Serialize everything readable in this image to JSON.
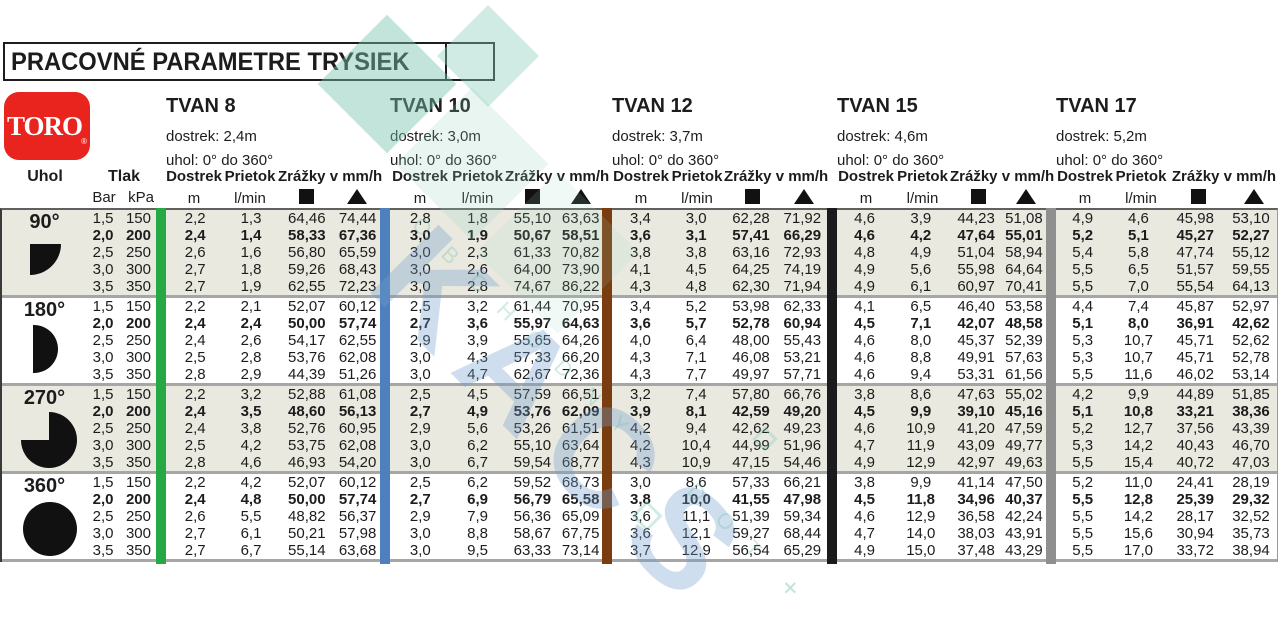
{
  "title": "PRACOVNÉ PARAMETRE TRYSIEK",
  "logo": {
    "text": "TORO",
    "registered": "®"
  },
  "headers": {
    "uhol": "Uhol",
    "tlak": "Tlak",
    "bar": "Bar",
    "kpa": "kPa",
    "dostrek": "Dostrek",
    "prietok": "Prietok",
    "zrazky": "Zrážky v mm/h",
    "m": "m",
    "lmin": "l/min"
  },
  "symbols": {
    "square": "square-icon",
    "triangle": "triangle-icon"
  },
  "sections": [
    {
      "name": "TVAN 8",
      "dostrek": "dostrek: 2,4m",
      "uhol": "uhol: 0° do 360°",
      "bar_color": "#26a944"
    },
    {
      "name": "TVAN 10",
      "dostrek": "dostrek: 3,0m",
      "uhol": "uhol:  0° do 360°",
      "bar_color": "#4d80bd"
    },
    {
      "name": "TVAN 12",
      "dostrek": "dostrek: 3,7m",
      "uhol": "uhol:  0° do 360°",
      "bar_color": "#7a3d10"
    },
    {
      "name": "TVAN 15",
      "dostrek": "dostrek: 4,6m",
      "uhol": "uhol:  0° do 360°",
      "bar_color": "#1b1b1e"
    },
    {
      "name": "TVAN 17",
      "dostrek": "dostrek: 5,2m",
      "uhol": "uhol:  0° do 360°",
      "bar_color": "#8f8f8f"
    }
  ],
  "groups": [
    {
      "angle": "90°",
      "icon": "quarter-circle-icon",
      "shaded": true,
      "rows": [
        {
          "bar": "1,5",
          "kpa": "150",
          "bold": false,
          "values": [
            [
              "2,2",
              "1,3",
              "64,46",
              "74,44"
            ],
            [
              "2,8",
              "1,8",
              "55,10",
              "63,63"
            ],
            [
              "3,4",
              "3,0",
              "62,28",
              "71,92"
            ],
            [
              "4,6",
              "3,9",
              "44,23",
              "51,08"
            ],
            [
              "4,9",
              "4,6",
              "45,98",
              "53,10"
            ]
          ]
        },
        {
          "bar": "2,0",
          "kpa": "200",
          "bold": true,
          "values": [
            [
              "2,4",
              "1,4",
              "58,33",
              "67,36"
            ],
            [
              "3,0",
              "1,9",
              "50,67",
              "58,51"
            ],
            [
              "3,6",
              "3,1",
              "57,41",
              "66,29"
            ],
            [
              "4,6",
              "4,2",
              "47,64",
              "55,01"
            ],
            [
              "5,2",
              "5,1",
              "45,27",
              "52,27"
            ]
          ]
        },
        {
          "bar": "2,5",
          "kpa": "250",
          "bold": false,
          "values": [
            [
              "2,6",
              "1,6",
              "56,80",
              "65,59"
            ],
            [
              "3,0",
              "2,3",
              "61,33",
              "70,82"
            ],
            [
              "3,8",
              "3,8",
              "63,16",
              "72,93"
            ],
            [
              "4,8",
              "4,9",
              "51,04",
              "58,94"
            ],
            [
              "5,4",
              "5,8",
              "47,74",
              "55,12"
            ]
          ]
        },
        {
          "bar": "3,0",
          "kpa": "300",
          "bold": false,
          "values": [
            [
              "2,7",
              "1,8",
              "59,26",
              "68,43"
            ],
            [
              "3,0",
              "2,6",
              "64,00",
              "73,90"
            ],
            [
              "4,1",
              "4,5",
              "64,25",
              "74,19"
            ],
            [
              "4,9",
              "5,6",
              "55,98",
              "64,64"
            ],
            [
              "5,5",
              "6,5",
              "51,57",
              "59,55"
            ]
          ]
        },
        {
          "bar": "3,5",
          "kpa": "350",
          "bold": false,
          "values": [
            [
              "2,7",
              "1,9",
              "62,55",
              "72,23"
            ],
            [
              "3,0",
              "2,8",
              "74,67",
              "86,22"
            ],
            [
              "4,3",
              "4,8",
              "62,30",
              "71,94"
            ],
            [
              "4,9",
              "6,1",
              "60,97",
              "70,41"
            ],
            [
              "5,5",
              "7,0",
              "55,54",
              "64,13"
            ]
          ]
        }
      ]
    },
    {
      "angle": "180°",
      "icon": "half-circle-icon",
      "shaded": false,
      "rows": [
        {
          "bar": "1,5",
          "kpa": "150",
          "bold": false,
          "values": [
            [
              "2,2",
              "2,1",
              "52,07",
              "60,12"
            ],
            [
              "2,5",
              "3,2",
              "61,44",
              "70,95"
            ],
            [
              "3,4",
              "5,2",
              "53,98",
              "62,33"
            ],
            [
              "4,1",
              "6,5",
              "46,40",
              "53,58"
            ],
            [
              "4,4",
              "7,4",
              "45,87",
              "52,97"
            ]
          ]
        },
        {
          "bar": "2,0",
          "kpa": "200",
          "bold": true,
          "values": [
            [
              "2,4",
              "2,4",
              "50,00",
              "57,74"
            ],
            [
              "2,7",
              "3,6",
              "55,97",
              "64,63"
            ],
            [
              "3,6",
              "5,7",
              "52,78",
              "60,94"
            ],
            [
              "4,5",
              "7,1",
              "42,07",
              "48,58"
            ],
            [
              "5,1",
              "8,0",
              "36,91",
              "42,62"
            ]
          ]
        },
        {
          "bar": "2,5",
          "kpa": "250",
          "bold": false,
          "values": [
            [
              "2,4",
              "2,6",
              "54,17",
              "62,55"
            ],
            [
              "2,9",
              "3,9",
              "55,65",
              "64,26"
            ],
            [
              "4,0",
              "6,4",
              "48,00",
              "55,43"
            ],
            [
              "4,6",
              "8,0",
              "45,37",
              "52,39"
            ],
            [
              "5,3",
              "10,7",
              "45,71",
              "52,62"
            ]
          ]
        },
        {
          "bar": "3,0",
          "kpa": "300",
          "bold": false,
          "values": [
            [
              "2,5",
              "2,8",
              "53,76",
              "62,08"
            ],
            [
              "3,0",
              "4,3",
              "57,33",
              "66,20"
            ],
            [
              "4,3",
              "7,1",
              "46,08",
              "53,21"
            ],
            [
              "4,6",
              "8,8",
              "49,91",
              "57,63"
            ],
            [
              "5,3",
              "10,7",
              "45,71",
              "52,78"
            ]
          ]
        },
        {
          "bar": "3,5",
          "kpa": "350",
          "bold": false,
          "values": [
            [
              "2,8",
              "2,9",
              "44,39",
              "51,26"
            ],
            [
              "3,0",
              "4,7",
              "62,67",
              "72,36"
            ],
            [
              "4,3",
              "7,7",
              "49,97",
              "57,71"
            ],
            [
              "4,6",
              "9,4",
              "53,31",
              "61,56"
            ],
            [
              "5,5",
              "11,6",
              "46,02",
              "53,14"
            ]
          ]
        }
      ]
    },
    {
      "angle": "270°",
      "icon": "three-quarter-circle-icon",
      "shaded": true,
      "rows": [
        {
          "bar": "1,5",
          "kpa": "150",
          "bold": false,
          "values": [
            [
              "2,2",
              "3,2",
              "52,88",
              "61,08"
            ],
            [
              "2,5",
              "4,5",
              "57,59",
              "66,51"
            ],
            [
              "3,2",
              "7,4",
              "57,80",
              "66,76"
            ],
            [
              "3,8",
              "8,6",
              "47,63",
              "55,02"
            ],
            [
              "4,2",
              "9,9",
              "44,89",
              "51,85"
            ]
          ]
        },
        {
          "bar": "2,0",
          "kpa": "200",
          "bold": true,
          "values": [
            [
              "2,4",
              "3,5",
              "48,60",
              "56,13"
            ],
            [
              "2,7",
              "4,9",
              "53,76",
              "62,09"
            ],
            [
              "3,9",
              "8,1",
              "42,59",
              "49,20"
            ],
            [
              "4,5",
              "9,9",
              "39,10",
              "45,16"
            ],
            [
              "5,1",
              "10,8",
              "33,21",
              "38,36"
            ]
          ]
        },
        {
          "bar": "2,5",
          "kpa": "250",
          "bold": false,
          "values": [
            [
              "2,4",
              "3,8",
              "52,76",
              "60,95"
            ],
            [
              "2,9",
              "5,6",
              "53,26",
              "61,51"
            ],
            [
              "4,2",
              "9,4",
              "42,62",
              "49,23"
            ],
            [
              "4,6",
              "10,9",
              "41,20",
              "47,59"
            ],
            [
              "5,2",
              "12,7",
              "37,56",
              "43,39"
            ]
          ]
        },
        {
          "bar": "3,0",
          "kpa": "300",
          "bold": false,
          "values": [
            [
              "2,5",
              "4,2",
              "53,75",
              "62,08"
            ],
            [
              "3,0",
              "6,2",
              "55,10",
              "63,64"
            ],
            [
              "4,2",
              "10,4",
              "44,99",
              "51,96"
            ],
            [
              "4,7",
              "11,9",
              "43,09",
              "49,77"
            ],
            [
              "5,3",
              "14,2",
              "40,43",
              "46,70"
            ]
          ]
        },
        {
          "bar": "3,5",
          "kpa": "350",
          "bold": false,
          "values": [
            [
              "2,8",
              "4,6",
              "46,93",
              "54,20"
            ],
            [
              "3,0",
              "6,7",
              "59,54",
              "68,77"
            ],
            [
              "4,3",
              "10,9",
              "47,15",
              "54,46"
            ],
            [
              "4,9",
              "12,9",
              "42,97",
              "49,63"
            ],
            [
              "5,5",
              "15,4",
              "40,72",
              "47,03"
            ]
          ]
        }
      ]
    },
    {
      "angle": "360°",
      "icon": "full-circle-icon",
      "shaded": false,
      "rows": [
        {
          "bar": "1,5",
          "kpa": "150",
          "bold": false,
          "values": [
            [
              "2,2",
              "4,2",
              "52,07",
              "60,12"
            ],
            [
              "2,5",
              "6,2",
              "59,52",
              "68,73"
            ],
            [
              "3,0",
              "8,6",
              "57,33",
              "66,21"
            ],
            [
              "3,8",
              "9,9",
              "41,14",
              "47,50"
            ],
            [
              "5,2",
              "11,0",
              "24,41",
              "28,19"
            ]
          ]
        },
        {
          "bar": "2,0",
          "kpa": "200",
          "bold": true,
          "values": [
            [
              "2,4",
              "4,8",
              "50,00",
              "57,74"
            ],
            [
              "2,7",
              "6,9",
              "56,79",
              "65,58"
            ],
            [
              "3,8",
              "10,0",
              "41,55",
              "47,98"
            ],
            [
              "4,5",
              "11,8",
              "34,96",
              "40,37"
            ],
            [
              "5,5",
              "12,8",
              "25,39",
              "29,32"
            ]
          ]
        },
        {
          "bar": "2,5",
          "kpa": "250",
          "bold": false,
          "values": [
            [
              "2,6",
              "5,5",
              "48,82",
              "56,37"
            ],
            [
              "2,9",
              "7,9",
              "56,36",
              "65,09"
            ],
            [
              "3,6",
              "11,1",
              "51,39",
              "59,34"
            ],
            [
              "4,6",
              "12,9",
              "36,58",
              "42,24"
            ],
            [
              "5,5",
              "14,2",
              "28,17",
              "32,52"
            ]
          ]
        },
        {
          "bar": "3,0",
          "kpa": "300",
          "bold": false,
          "values": [
            [
              "2,7",
              "6,1",
              "50,21",
              "57,98"
            ],
            [
              "3,0",
              "8,8",
              "58,67",
              "67,75"
            ],
            [
              "3,6",
              "12,1",
              "59,27",
              "68,44"
            ],
            [
              "4,7",
              "14,0",
              "38,03",
              "43,91"
            ],
            [
              "5,5",
              "15,6",
              "30,94",
              "35,73"
            ]
          ]
        },
        {
          "bar": "3,5",
          "kpa": "350",
          "bold": false,
          "values": [
            [
              "2,7",
              "6,7",
              "55,14",
              "63,68"
            ],
            [
              "3,0",
              "9,5",
              "63,33",
              "73,14"
            ],
            [
              "3,7",
              "12,9",
              "56,54",
              "65,29"
            ],
            [
              "4,9",
              "15,0",
              "37,48",
              "43,29"
            ],
            [
              "5,5",
              "17,0",
              "33,72",
              "38,94"
            ]
          ]
        }
      ]
    }
  ],
  "colors": {
    "shaded_row": "#eae9e0",
    "text": "#1c1c1c",
    "toro_red": "#e9241f",
    "separator": "#a6a6a6"
  },
  "watermark": {
    "big_text": "KACS",
    "small_text_1": "OBCHODNY",
    "small_text_2": "DOT",
    "cross": "+"
  }
}
